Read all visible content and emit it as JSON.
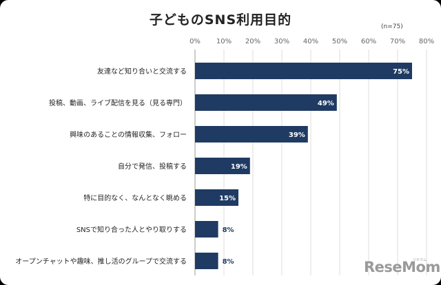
{
  "chart_data": {
    "type": "bar",
    "orientation": "horizontal",
    "title": "子どものSNS利用目的",
    "note": "(n=75)",
    "xlim": [
      0,
      80
    ],
    "ticks": [
      "0%",
      "10%",
      "20%",
      "30%",
      "40%",
      "50%",
      "60%",
      "70%",
      "80%"
    ],
    "tick_values": [
      0,
      10,
      20,
      30,
      40,
      50,
      60,
      70,
      80
    ],
    "grid": true,
    "bar_color": "#1f3b63",
    "categories": [
      "友達など知り合いと交流する",
      "投稿、動画、ライブ配信を見る（見る専門）",
      "興味のあることの情報収集、フォロー",
      "自分で発信、投稿する",
      "特に目的なく、なんとなく眺める",
      "SNSで知り合った人とやり取りする",
      "オープンチャットや趣味、推し活のグループで交流する"
    ],
    "values": [
      75,
      49,
      39,
      19,
      15,
      8,
      8
    ],
    "value_labels": [
      "75%",
      "49%",
      "39%",
      "19%",
      "15%",
      "8%",
      "8%"
    ]
  },
  "logo": {
    "text": "ReseMom",
    "sub": "リセマム"
  }
}
